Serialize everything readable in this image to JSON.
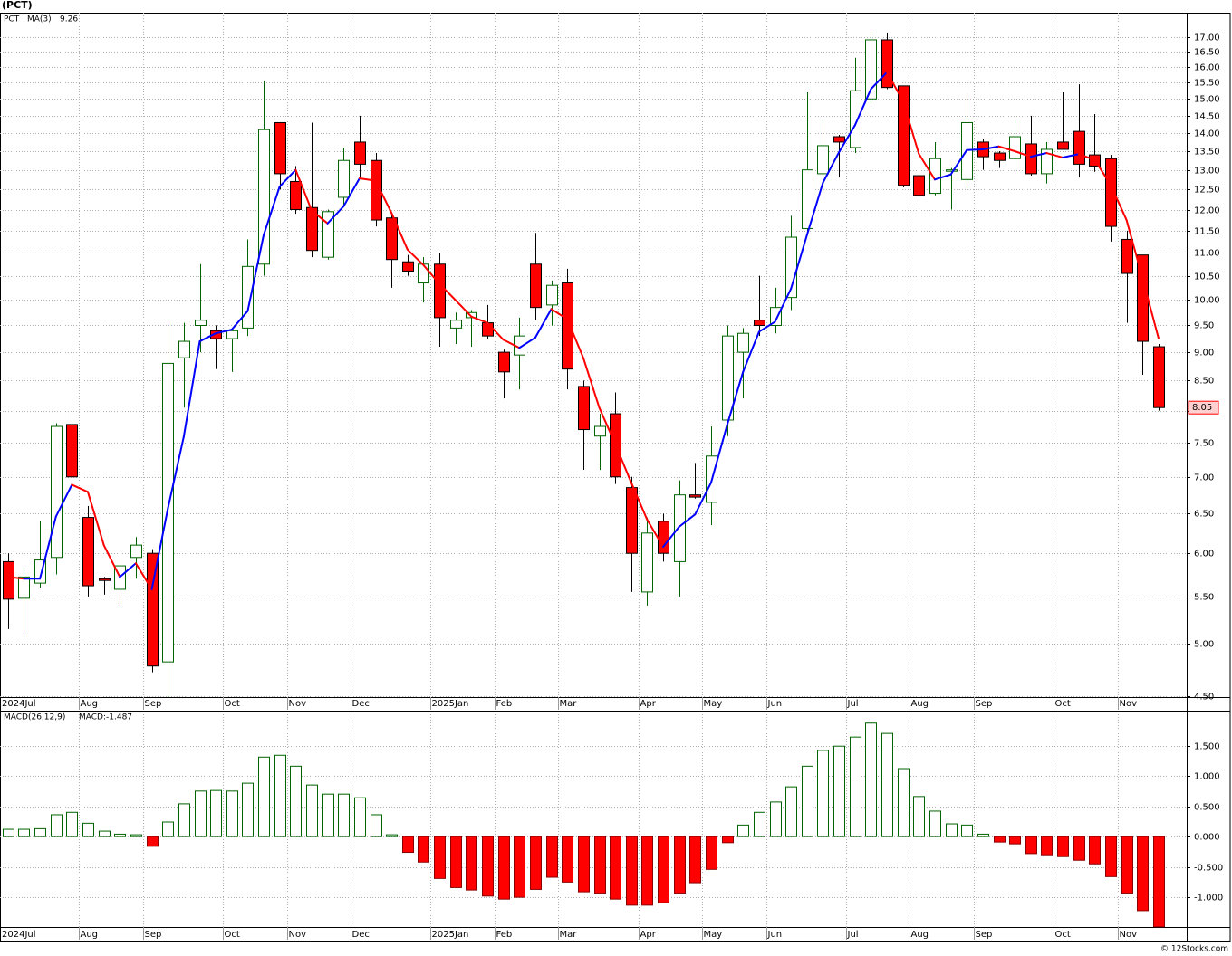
{
  "title": "(PCT)",
  "watermark": "© 12Stocks.com",
  "chart_data": [
    {
      "type": "candlestick",
      "log": true,
      "grid": true,
      "categories": [
        "2024Jul",
        null,
        null,
        null,
        null,
        "Aug",
        null,
        null,
        null,
        "Sep",
        null,
        null,
        null,
        null,
        "Oct",
        null,
        null,
        null,
        "Nov",
        null,
        null,
        null,
        "Dec",
        null,
        null,
        null,
        null,
        "2025Jan",
        null,
        null,
        null,
        "Feb",
        null,
        null,
        null,
        "Mar",
        null,
        null,
        null,
        null,
        "Apr",
        null,
        null,
        null,
        "May",
        null,
        null,
        null,
        "Jun",
        null,
        null,
        null,
        null,
        "Jul",
        null,
        null,
        null,
        "Aug",
        null,
        null,
        null,
        "Sep",
        null,
        null,
        null,
        null,
        "Oct",
        null,
        null,
        null,
        "Nov",
        null,
        null
      ],
      "series": [
        {
          "name": "PCT",
          "color": "#006400",
          "up_color": "#ffffff",
          "down_color": "#ff0000",
          "open": [
            5.9,
            5.48,
            5.65,
            5.95,
            7.78,
            6.45,
            5.7,
            5.58,
            5.95,
            6.0,
            4.82,
            8.9,
            9.5,
            9.4,
            9.25,
            9.45,
            10.75,
            14.3,
            12.7,
            12.05,
            10.9,
            12.3,
            13.75,
            13.25,
            11.8,
            10.8,
            10.35,
            10.75,
            9.45,
            9.65,
            9.55,
            9.0,
            8.95,
            10.75,
            9.9,
            10.35,
            8.4,
            7.6,
            7.95,
            6.85,
            5.55,
            6.4,
            5.9,
            6.75,
            6.65,
            7.85,
            9.0,
            9.6,
            9.5,
            10.05,
            11.55,
            12.9,
            13.9,
            13.6,
            15.0,
            16.9,
            15.4,
            12.85,
            12.4,
            12.98,
            12.75,
            13.75,
            13.45,
            13.3,
            13.7,
            12.9,
            13.75,
            14.05,
            13.4,
            13.3,
            11.3,
            10.95,
            9.1
          ],
          "high": [
            6.0,
            5.85,
            6.4,
            7.8,
            8.0,
            6.6,
            5.72,
            5.95,
            6.2,
            6.05,
            9.55,
            9.55,
            10.75,
            9.5,
            9.45,
            11.3,
            15.55,
            14.3,
            13.1,
            14.3,
            12.0,
            13.6,
            14.5,
            13.45,
            11.9,
            10.95,
            10.9,
            11.0,
            9.75,
            9.8,
            9.9,
            9.05,
            9.65,
            11.45,
            10.4,
            10.65,
            8.5,
            7.95,
            8.3,
            7.0,
            6.45,
            6.5,
            6.95,
            7.2,
            7.75,
            9.5,
            9.45,
            10.5,
            10.25,
            11.85,
            15.2,
            14.3,
            13.95,
            16.3,
            17.25,
            17.15,
            15.4,
            12.95,
            13.75,
            13.05,
            15.15,
            13.85,
            13.5,
            14.35,
            14.5,
            13.75,
            15.2,
            15.45,
            14.55,
            13.4,
            11.5,
            10.95,
            9.15
          ],
          "low": [
            5.15,
            5.1,
            5.6,
            5.75,
            6.85,
            5.5,
            5.52,
            5.42,
            5.7,
            4.72,
            4.5,
            8.05,
            9.0,
            8.7,
            8.65,
            9.3,
            10.5,
            12.5,
            11.9,
            10.9,
            10.85,
            12.1,
            12.8,
            11.6,
            10.25,
            10.5,
            9.95,
            9.1,
            9.15,
            9.1,
            9.25,
            8.2,
            8.35,
            9.6,
            9.5,
            8.35,
            7.1,
            7.1,
            6.9,
            5.55,
            5.4,
            5.9,
            5.5,
            6.7,
            6.35,
            7.6,
            8.2,
            9.3,
            9.35,
            9.8,
            11.45,
            12.85,
            12.8,
            13.45,
            14.9,
            15.3,
            12.55,
            12.0,
            12.35,
            12.0,
            12.65,
            13.0,
            13.05,
            12.95,
            12.85,
            12.65,
            13.55,
            12.8,
            12.95,
            11.25,
            9.55,
            8.6,
            8.0
          ],
          "close": [
            5.47,
            5.72,
            5.92,
            7.75,
            7.0,
            5.62,
            5.68,
            5.85,
            6.1,
            4.78,
            8.8,
            9.2,
            9.6,
            9.25,
            9.4,
            10.7,
            14.1,
            12.9,
            12.0,
            11.05,
            11.95,
            13.25,
            13.15,
            11.75,
            10.85,
            10.6,
            10.75,
            9.65,
            9.6,
            9.75,
            9.3,
            8.65,
            9.3,
            9.85,
            10.3,
            8.7,
            7.7,
            7.75,
            7.0,
            6.0,
            6.25,
            6.0,
            6.75,
            6.72,
            7.3,
            9.3,
            9.35,
            9.5,
            9.85,
            11.35,
            13.0,
            13.65,
            13.75,
            15.25,
            16.9,
            15.35,
            12.6,
            12.35,
            13.3,
            13.0,
            14.3,
            13.35,
            13.25,
            13.9,
            12.9,
            13.55,
            13.55,
            13.15,
            13.1,
            11.6,
            10.55,
            9.2,
            8.05
          ]
        },
        {
          "name": "MA(3)",
          "type": "line",
          "color": "#0000ff",
          "down_color": "#ff0000",
          "values": [
            5.72,
            5.7,
            5.7,
            6.46,
            6.89,
            6.79,
            6.1,
            5.72,
            5.88,
            5.58,
            6.56,
            7.59,
            9.2,
            9.35,
            9.42,
            9.78,
            11.4,
            12.57,
            13.0,
            11.98,
            11.67,
            12.08,
            12.78,
            12.72,
            11.92,
            11.07,
            10.73,
            10.33,
            10.0,
            9.67,
            9.55,
            9.23,
            9.08,
            9.27,
            9.82,
            9.62,
            8.9,
            8.05,
            7.48,
            6.92,
            6.42,
            6.08,
            6.33,
            6.49,
            6.92,
            7.77,
            8.65,
            9.38,
            9.57,
            10.23,
            11.4,
            12.67,
            13.47,
            14.22,
            15.3,
            15.83,
            14.95,
            13.43,
            12.75,
            12.88,
            13.53,
            13.55,
            13.63,
            13.5,
            13.35,
            13.45,
            13.33,
            13.42,
            13.27,
            12.62,
            11.75,
            10.45,
            9.26
          ]
        }
      ],
      "ylim": [
        4.49,
        17.85
      ],
      "yticks": [
        {
          "value": 4.5,
          "label": "4.50"
        },
        {
          "value": 5,
          "label": "5.00"
        },
        {
          "value": 5.5,
          "label": "5.50"
        },
        {
          "value": 6,
          "label": "6.00"
        },
        {
          "value": 6.5,
          "label": "6.50"
        },
        {
          "value": 7,
          "label": "7.00"
        },
        {
          "value": 7.5,
          "label": "7.50"
        },
        {
          "value": 8,
          "label": "8.00"
        },
        {
          "value": 8.5,
          "label": "8.50"
        },
        {
          "value": 9,
          "label": "9.00"
        },
        {
          "value": 9.5,
          "label": "9.50"
        },
        {
          "value": 10,
          "label": "10.00"
        },
        {
          "value": 10.5,
          "label": "10.50"
        },
        {
          "value": 11,
          "label": "11.00"
        },
        {
          "value": 11.5,
          "label": "11.50"
        },
        {
          "value": 12,
          "label": "12.00"
        },
        {
          "value": 12.5,
          "label": "12.50"
        },
        {
          "value": 13,
          "label": "13.00"
        },
        {
          "value": 13.5,
          "label": "13.50"
        },
        {
          "value": 14,
          "label": "14.00"
        },
        {
          "value": 14.5,
          "label": "14.50"
        },
        {
          "value": 15,
          "label": "15.00"
        },
        {
          "value": 15.5,
          "label": "15.50"
        },
        {
          "value": 16,
          "label": "16.00"
        },
        {
          "value": 16.5,
          "label": "16.50"
        },
        {
          "value": 17,
          "label": "17.00"
        }
      ]
    },
    {
      "type": "bar",
      "grid": true,
      "label": "MACD:-1.487",
      "categories": [
        "2024Jul",
        null,
        null,
        null,
        null,
        "Aug",
        null,
        null,
        null,
        "Sep",
        null,
        null,
        null,
        null,
        "Oct",
        null,
        null,
        null,
        "Nov",
        null,
        null,
        null,
        "Dec",
        null,
        null,
        null,
        null,
        "2025Jan",
        null,
        null,
        null,
        "Feb",
        null,
        null,
        null,
        "Mar",
        null,
        null,
        null,
        null,
        "Apr",
        null,
        null,
        null,
        "May",
        null,
        null,
        null,
        "Jun",
        null,
        null,
        null,
        null,
        "Jul",
        null,
        null,
        null,
        "Aug",
        null,
        null,
        null,
        "Sep",
        null,
        null,
        null,
        null,
        "Oct",
        null,
        null,
        null,
        "Nov",
        null,
        null
      ],
      "series": [
        {
          "name": "MACD(26,12,9)",
          "color": "#006400",
          "up_color": "#ffffff",
          "down_color": "#ff0000",
          "values": [
            0.12,
            0.12,
            0.13,
            0.36,
            0.4,
            0.22,
            0.09,
            0.04,
            0.03,
            -0.16,
            0.24,
            0.54,
            0.75,
            0.76,
            0.75,
            0.88,
            1.31,
            1.34,
            1.16,
            0.85,
            0.7,
            0.7,
            0.64,
            0.36,
            0.03,
            -0.26,
            -0.42,
            -0.69,
            -0.84,
            -0.88,
            -0.98,
            -1.03,
            -1.0,
            -0.87,
            -0.67,
            -0.75,
            -0.91,
            -0.93,
            -1.03,
            -1.13,
            -1.13,
            -1.09,
            -0.93,
            -0.76,
            -0.54,
            -0.1,
            0.19,
            0.4,
            0.57,
            0.82,
            1.16,
            1.42,
            1.49,
            1.64,
            1.87,
            1.7,
            1.12,
            0.66,
            0.42,
            0.21,
            0.19,
            0.04,
            -0.09,
            -0.12,
            -0.28,
            -0.3,
            -0.33,
            -0.39,
            -0.45,
            -0.66,
            -0.93,
            -1.22,
            -1.487
          ]
        }
      ],
      "ylim": [
        -1.49,
        2.06
      ],
      "yticks": [
        {
          "value": -1,
          "label": "-1.000"
        },
        {
          "value": -0.5,
          "label": "-0.500"
        },
        {
          "value": 0,
          "label": "0.000"
        },
        {
          "value": 0.5,
          "label": "0.500"
        },
        {
          "value": 1,
          "label": "1.000"
        },
        {
          "value": 1.5,
          "label": "1.500"
        }
      ]
    }
  ]
}
